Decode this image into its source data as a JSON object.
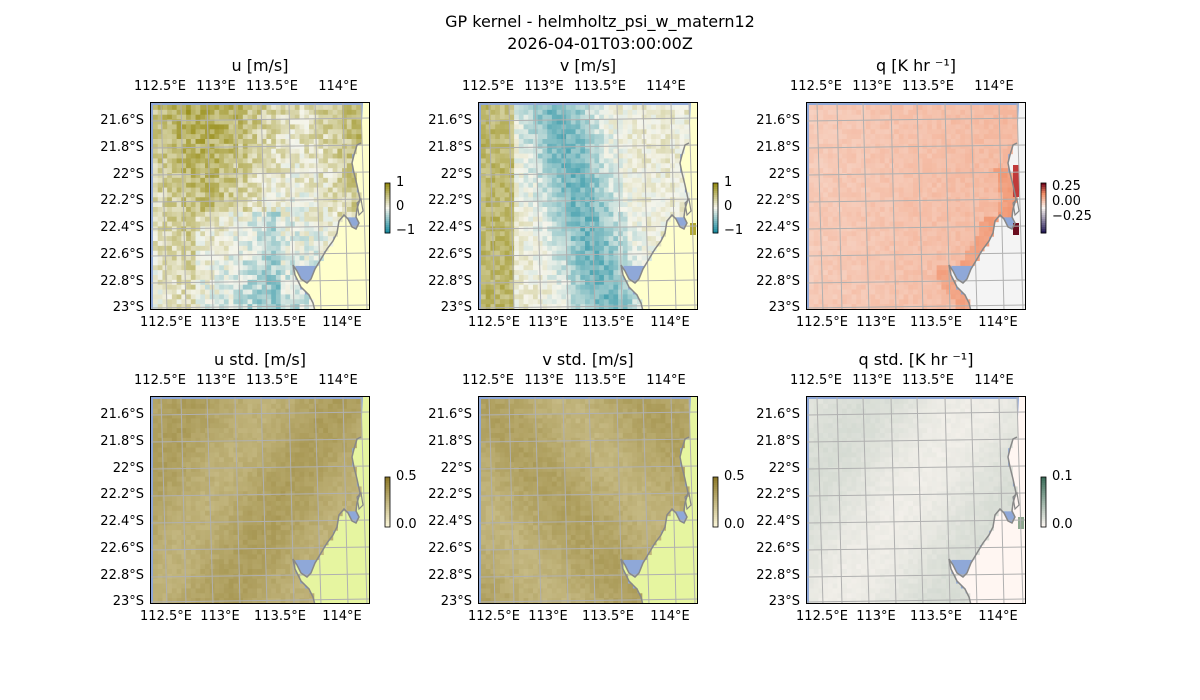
{
  "figure": {
    "title_line1": "GP kernel - helmholtz_psi_w_matern12",
    "title_line2": "2026-04-01T03:00:00Z"
  },
  "chart_data": [
    {
      "type": "heatmap",
      "title": "u [m/s]",
      "lon_ticks": [
        "112.5°E",
        "113°E",
        "113.5°E",
        "114°E"
      ],
      "lat_ticks": [
        "21.6°S",
        "21.8°S",
        "22°S",
        "22.2°S",
        "22.4°S",
        "22.6°S",
        "22.8°S",
        "23°S"
      ],
      "colorbar_ticks": [
        "1",
        "0",
        "−1"
      ],
      "clim": [
        -1,
        1
      ],
      "cmap": "diverging-olive-teal"
    },
    {
      "type": "heatmap",
      "title": "v [m/s]",
      "lon_ticks": [
        "112.5°E",
        "113°E",
        "113.5°E",
        "114°E"
      ],
      "lat_ticks": [
        "21.6°S",
        "21.8°S",
        "22°S",
        "22.2°S",
        "22.4°S",
        "22.6°S",
        "22.8°S",
        "23°S"
      ],
      "colorbar_ticks": [
        "1",
        "0",
        "−1"
      ],
      "clim": [
        -1,
        1
      ],
      "cmap": "diverging-olive-teal"
    },
    {
      "type": "heatmap",
      "title": "q [K hr ⁻¹]",
      "lon_ticks": [
        "112.5°E",
        "113°E",
        "113.5°E",
        "114°E"
      ],
      "lat_ticks": [
        "21.6°S",
        "21.8°S",
        "22°S",
        "22.2°S",
        "22.4°S",
        "22.6°S",
        "22.8°S",
        "23°S"
      ],
      "colorbar_ticks": [
        "0.25",
        "0.00",
        "−0.25"
      ],
      "clim": [
        -0.4,
        0.4
      ],
      "cmap": "diverging-red-blue"
    },
    {
      "type": "heatmap",
      "title": "u std. [m/s]",
      "lon_ticks": [
        "112.5°E",
        "113°E",
        "113.5°E",
        "114°E"
      ],
      "lat_ticks": [
        "21.6°S",
        "21.8°S",
        "22°S",
        "22.2°S",
        "22.4°S",
        "22.6°S",
        "22.8°S",
        "23°S"
      ],
      "colorbar_ticks": [
        "0.5",
        "0.0"
      ],
      "clim": [
        0,
        0.5
      ],
      "cmap": "sequential-olive"
    },
    {
      "type": "heatmap",
      "title": "v std. [m/s]",
      "lon_ticks": [
        "112.5°E",
        "113°E",
        "113.5°E",
        "114°E"
      ],
      "lat_ticks": [
        "21.6°S",
        "21.8°S",
        "22°S",
        "22.2°S",
        "22.4°S",
        "22.6°S",
        "22.8°S",
        "23°S"
      ],
      "colorbar_ticks": [
        "0.5",
        "0.0"
      ],
      "clim": [
        0,
        0.5
      ],
      "cmap": "sequential-olive"
    },
    {
      "type": "heatmap",
      "title": "q std. [K hr ⁻¹]",
      "lon_ticks": [
        "112.5°E",
        "113°E",
        "113.5°E",
        "114°E"
      ],
      "lat_ticks": [
        "21.6°S",
        "21.8°S",
        "22°S",
        "22.2°S",
        "22.4°S",
        "22.6°S",
        "22.8°S",
        "23°S"
      ],
      "colorbar_ticks": [
        "0.1",
        "0.0"
      ],
      "clim": [
        0,
        0.1
      ],
      "cmap": "sequential-pale-green"
    }
  ],
  "colors": {
    "ocean_edge": "#8fa8d8",
    "land": "#ffffcc",
    "land_std": "#e6f5a0",
    "coastline": "#888888",
    "grid": "#b0b0b0"
  }
}
